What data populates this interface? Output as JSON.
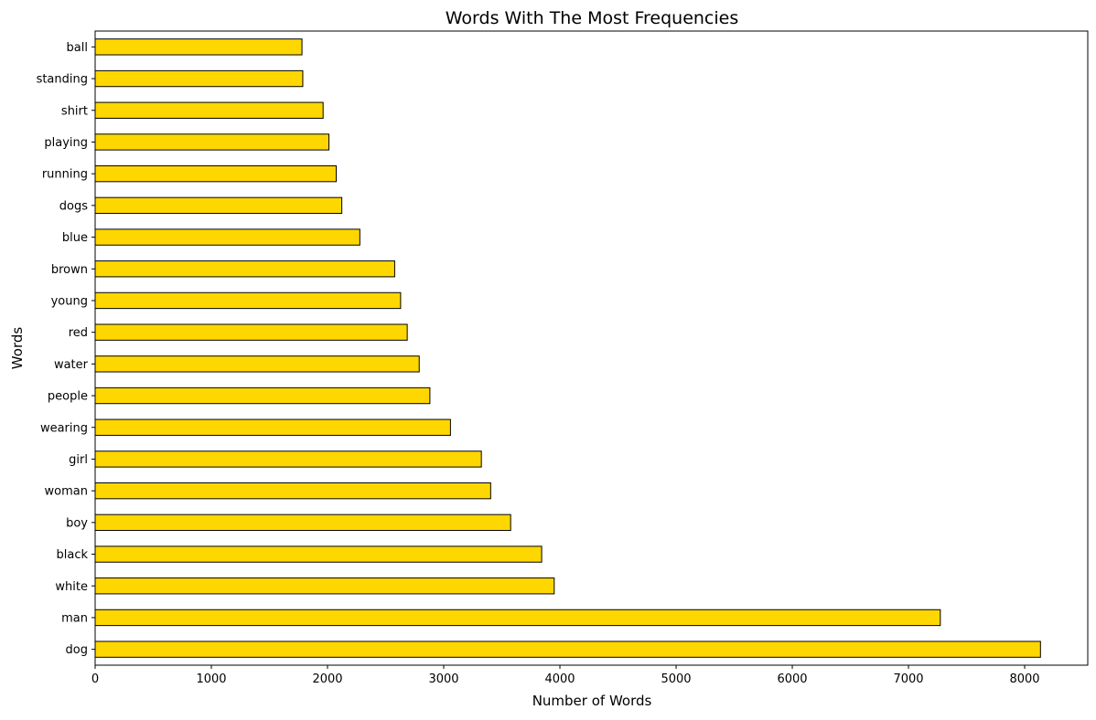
{
  "chart_data": {
    "type": "bar",
    "orientation": "horizontal",
    "title": "Words With The Most Frequencies",
    "xlabel": "Number of Words",
    "ylabel": "Words",
    "categories": [
      "dog",
      "man",
      "white",
      "black",
      "boy",
      "woman",
      "girl",
      "wearing",
      "people",
      "water",
      "red",
      "young",
      "brown",
      "blue",
      "dogs",
      "running",
      "playing",
      "shirt",
      "standing",
      "ball"
    ],
    "values": [
      8136,
      7274,
      3951,
      3843,
      3576,
      3404,
      3324,
      3058,
      2881,
      2789,
      2686,
      2629,
      2578,
      2278,
      2123,
      2075,
      2012,
      1962,
      1787,
      1780
    ],
    "xlim": [
      0,
      8543
    ],
    "xticks": [
      0,
      1000,
      2000,
      3000,
      4000,
      5000,
      6000,
      7000,
      8000
    ],
    "grid": false,
    "legend": "none",
    "colors": {
      "bar_fill": "#ffd700",
      "bar_edge": "#000000"
    }
  }
}
